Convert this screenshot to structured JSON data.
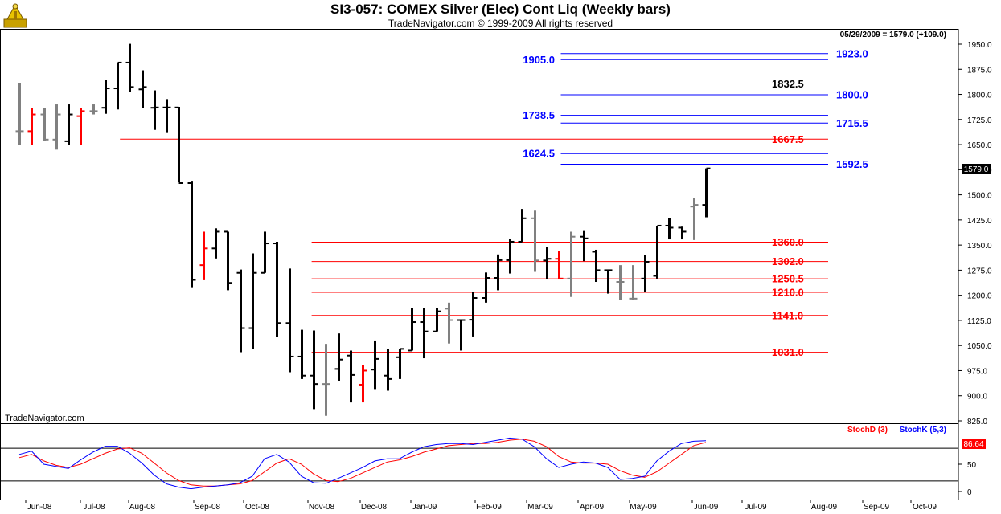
{
  "header": {
    "title": "SI3-057:  COMEX Silver (Elec) Cont Liq  (Weekly bars)",
    "subtitle": "TradeNavigator.com © 1999-2009 All rights reserved"
  },
  "chart_data": {
    "type": "ohlc",
    "last_price_label": "05/29/2009 = 1579.0 (+109.0)",
    "last_price_tag": "1579.0",
    "watermark": "TradeNavigator.com",
    "price_axis": {
      "min": 825,
      "max": 1950,
      "ticks": [
        "1950.0",
        "1875.0",
        "1800.0",
        "1725.0",
        "1650.0",
        "1575.0",
        "1500.0",
        "1425.0",
        "1350.0",
        "1275.0",
        "1200.0",
        "1125.0",
        "1050.0",
        "975.0",
        "900.0",
        "825.0"
      ]
    },
    "months": [
      "Jun-08",
      "Jul-08",
      "Aug-08",
      "Sep-08",
      "Oct-08",
      "Nov-08",
      "Dec-08",
      "Jan-09",
      "Feb-09",
      "Mar-09",
      "Apr-09",
      "May-09",
      "Jun-09",
      "Jul-09",
      "Aug-09",
      "Sep-09",
      "Oct-09"
    ],
    "colors": {
      "up": "#000000",
      "down": "#808080",
      "special": "#ff0000",
      "red_line": "#ff0000",
      "blue_line": "#0000ff",
      "black_line": "#000000",
      "blue_text": "#0000ff",
      "red_text": "#ff0000"
    },
    "bars": [
      {
        "o": 1690,
        "h": 1835,
        "l": 1650,
        "c": 1690,
        "t": "down"
      },
      {
        "o": 1690,
        "h": 1760,
        "l": 1650,
        "c": 1740,
        "t": "special"
      },
      {
        "o": 1740,
        "h": 1760,
        "l": 1660,
        "c": 1665,
        "t": "down"
      },
      {
        "o": 1665,
        "h": 1770,
        "l": 1635,
        "c": 1740,
        "t": "down"
      },
      {
        "o": 1660,
        "h": 1770,
        "l": 1650,
        "c": 1740,
        "t": "up"
      },
      {
        "o": 1735,
        "h": 1760,
        "l": 1650,
        "c": 1750,
        "t": "special"
      },
      {
        "o": 1750,
        "h": 1770,
        "l": 1740,
        "c": 1750,
        "t": "down"
      },
      {
        "o": 1760,
        "h": 1844,
        "l": 1742,
        "c": 1818,
        "t": "up"
      },
      {
        "o": 1818,
        "h": 1893,
        "l": 1755,
        "c": 1895,
        "t": "up"
      },
      {
        "o": 1895,
        "h": 1951,
        "l": 1808,
        "c": 1822,
        "t": "up"
      },
      {
        "o": 1815,
        "h": 1872,
        "l": 1760,
        "c": 1822,
        "t": "up"
      },
      {
        "o": 1760,
        "h": 1812,
        "l": 1694,
        "c": 1761,
        "t": "up"
      },
      {
        "o": 1761,
        "h": 1786,
        "l": 1687,
        "c": 1761,
        "t": "up"
      },
      {
        "o": 1761,
        "h": 1763,
        "l": 1539,
        "c": 1535,
        "t": "up"
      },
      {
        "o": 1535,
        "h": 1542,
        "l": 1224,
        "c": 1246,
        "t": "up"
      },
      {
        "o": 1290,
        "h": 1390,
        "l": 1245,
        "c": 1340,
        "t": "special"
      },
      {
        "o": 1340,
        "h": 1400,
        "l": 1310,
        "c": 1390,
        "t": "up"
      },
      {
        "o": 1390,
        "h": 1390,
        "l": 1215,
        "c": 1237,
        "t": "up"
      },
      {
        "o": 1267,
        "h": 1277,
        "l": 1030,
        "c": 1102,
        "t": "up"
      },
      {
        "o": 1102,
        "h": 1325,
        "l": 1040,
        "c": 1267,
        "t": "up"
      },
      {
        "o": 1267,
        "h": 1390,
        "l": 1267,
        "c": 1355,
        "t": "up"
      },
      {
        "o": 1355,
        "h": 1360,
        "l": 1075,
        "c": 1117,
        "t": "up"
      },
      {
        "o": 1117,
        "h": 1280,
        "l": 970,
        "c": 1017,
        "t": "up"
      },
      {
        "o": 1017,
        "h": 1097,
        "l": 950,
        "c": 960,
        "t": "up"
      },
      {
        "o": 960,
        "h": 1095,
        "l": 860,
        "c": 935,
        "t": "up"
      },
      {
        "o": 935,
        "h": 1055,
        "l": 840,
        "c": 935,
        "t": "down"
      },
      {
        "o": 980,
        "h": 1086,
        "l": 945,
        "c": 1008,
        "t": "up"
      },
      {
        "o": 1020,
        "h": 1035,
        "l": 880,
        "c": 962,
        "t": "up"
      },
      {
        "o": 933,
        "h": 992,
        "l": 880,
        "c": 975,
        "t": "special"
      },
      {
        "o": 978,
        "h": 1065,
        "l": 920,
        "c": 1010,
        "t": "up"
      },
      {
        "o": 960,
        "h": 1040,
        "l": 915,
        "c": 950,
        "t": "up"
      },
      {
        "o": 1015,
        "h": 1040,
        "l": 950,
        "c": 1040,
        "t": "up"
      },
      {
        "o": 1035,
        "h": 1161,
        "l": 1035,
        "c": 1120,
        "t": "up"
      },
      {
        "o": 1120,
        "h": 1161,
        "l": 1012,
        "c": 1092,
        "t": "up"
      },
      {
        "o": 1092,
        "h": 1162,
        "l": 1092,
        "c": 1152,
        "t": "up"
      },
      {
        "o": 1160,
        "h": 1178,
        "l": 1056,
        "c": 1126,
        "t": "down"
      },
      {
        "o": 1126,
        "h": 1128,
        "l": 1035,
        "c": 1126,
        "t": "up"
      },
      {
        "o": 1127,
        "h": 1210,
        "l": 1077,
        "c": 1192,
        "t": "up"
      },
      {
        "o": 1192,
        "h": 1268,
        "l": 1178,
        "c": 1252,
        "t": "up"
      },
      {
        "o": 1252,
        "h": 1322,
        "l": 1215,
        "c": 1305,
        "t": "up"
      },
      {
        "o": 1305,
        "h": 1368,
        "l": 1265,
        "c": 1360,
        "t": "up"
      },
      {
        "o": 1360,
        "h": 1458,
        "l": 1360,
        "c": 1430,
        "t": "up"
      },
      {
        "o": 1430,
        "h": 1453,
        "l": 1270,
        "c": 1304,
        "t": "down"
      },
      {
        "o": 1304,
        "h": 1345,
        "l": 1248,
        "c": 1309,
        "t": "up"
      },
      {
        "o": 1309,
        "h": 1333,
        "l": 1248,
        "c": 1250,
        "t": "special"
      },
      {
        "o": 1250,
        "h": 1390,
        "l": 1195,
        "c": 1375,
        "t": "down"
      },
      {
        "o": 1375,
        "h": 1392,
        "l": 1302,
        "c": 1370,
        "t": "up"
      },
      {
        "o": 1330,
        "h": 1336,
        "l": 1240,
        "c": 1275,
        "t": "up"
      },
      {
        "o": 1275,
        "h": 1275,
        "l": 1205,
        "c": 1275,
        "t": "up"
      },
      {
        "o": 1240,
        "h": 1290,
        "l": 1185,
        "c": 1240,
        "t": "down"
      },
      {
        "o": 1190,
        "h": 1290,
        "l": 1185,
        "c": 1190,
        "t": "down"
      },
      {
        "o": 1250,
        "h": 1320,
        "l": 1210,
        "c": 1300,
        "t": "up"
      },
      {
        "o": 1258,
        "h": 1408,
        "l": 1250,
        "c": 1408,
        "t": "up"
      },
      {
        "o": 1408,
        "h": 1430,
        "l": 1367,
        "c": 1402,
        "t": "up"
      },
      {
        "o": 1402,
        "h": 1405,
        "l": 1367,
        "c": 1390,
        "t": "up"
      },
      {
        "o": 1465,
        "h": 1490,
        "l": 1365,
        "c": 1470,
        "t": "down"
      },
      {
        "o": 1470,
        "h": 1579,
        "l": 1433,
        "c": 1579,
        "t": "up"
      }
    ],
    "levels": [
      {
        "value": 1923.0,
        "label": "1923.0",
        "color": "blue",
        "side": "right",
        "xs": 0.56
      },
      {
        "value": 1905.0,
        "label": "1905.0",
        "color": "blue",
        "side": "left",
        "xs": 0.56
      },
      {
        "value": 1832.5,
        "label": "1832.5",
        "color": "black",
        "side": "right",
        "xs": 0.1
      },
      {
        "value": 1800.0,
        "label": "1800.0",
        "color": "blue",
        "side": "right",
        "xs": 0.56
      },
      {
        "value": 1738.5,
        "label": "1738.5",
        "color": "blue",
        "side": "left",
        "xs": 0.56
      },
      {
        "value": 1715.5,
        "label": "1715.5",
        "color": "blue",
        "side": "right",
        "xs": 0.56
      },
      {
        "value": 1667.5,
        "label": "1667.5",
        "color": "red",
        "side": "right",
        "xs": 0.1
      },
      {
        "value": 1624.5,
        "label": "1624.5",
        "color": "blue",
        "side": "left",
        "xs": 0.56
      },
      {
        "value": 1592.5,
        "label": "1592.5",
        "color": "blue",
        "side": "right",
        "xs": 0.56
      },
      {
        "value": 1360.0,
        "label": "1360.0",
        "color": "red",
        "side": "right",
        "xs": 0.3
      },
      {
        "value": 1302.0,
        "label": "1302.0",
        "color": "red",
        "side": "right",
        "xs": 0.3
      },
      {
        "value": 1250.5,
        "label": "1250.5",
        "color": "red",
        "side": "right",
        "xs": 0.3
      },
      {
        "value": 1210.0,
        "label": "1210.0",
        "color": "red",
        "side": "right",
        "xs": 0.3
      },
      {
        "value": 1141.0,
        "label": "1141.0",
        "color": "red",
        "side": "right",
        "xs": 0.3
      },
      {
        "value": 1031.0,
        "label": "1031.0",
        "color": "red",
        "side": "right",
        "xs": 0.3
      }
    ],
    "stoch": {
      "legend_d": "StochD (3)",
      "legend_k": "StochK (5,3)",
      "value_tag": "86.64",
      "y_ticks": [
        "50",
        "0"
      ],
      "overbought": 80,
      "oversold": 20,
      "stoch_k": [
        68,
        74,
        50,
        46,
        42,
        58,
        72,
        83,
        83,
        70,
        52,
        30,
        14,
        8,
        5,
        8,
        10,
        12,
        16,
        28,
        60,
        68,
        54,
        28,
        16,
        15,
        24,
        34,
        44,
        56,
        60,
        60,
        72,
        82,
        86,
        88,
        88,
        86,
        90,
        94,
        98,
        96,
        82,
        60,
        44,
        50,
        54,
        52,
        44,
        22,
        24,
        28,
        56,
        74,
        88,
        92,
        93
      ],
      "stoch_d": [
        62,
        68,
        56,
        48,
        44,
        50,
        60,
        70,
        78,
        80,
        70,
        52,
        34,
        20,
        12,
        10,
        10,
        12,
        14,
        20,
        36,
        52,
        60,
        50,
        32,
        20,
        18,
        24,
        34,
        44,
        54,
        58,
        64,
        72,
        78,
        84,
        86,
        88,
        88,
        90,
        94,
        96,
        92,
        82,
        64,
        54,
        52,
        52,
        50,
        38,
        30,
        26,
        36,
        52,
        68,
        84,
        90
      ]
    }
  }
}
